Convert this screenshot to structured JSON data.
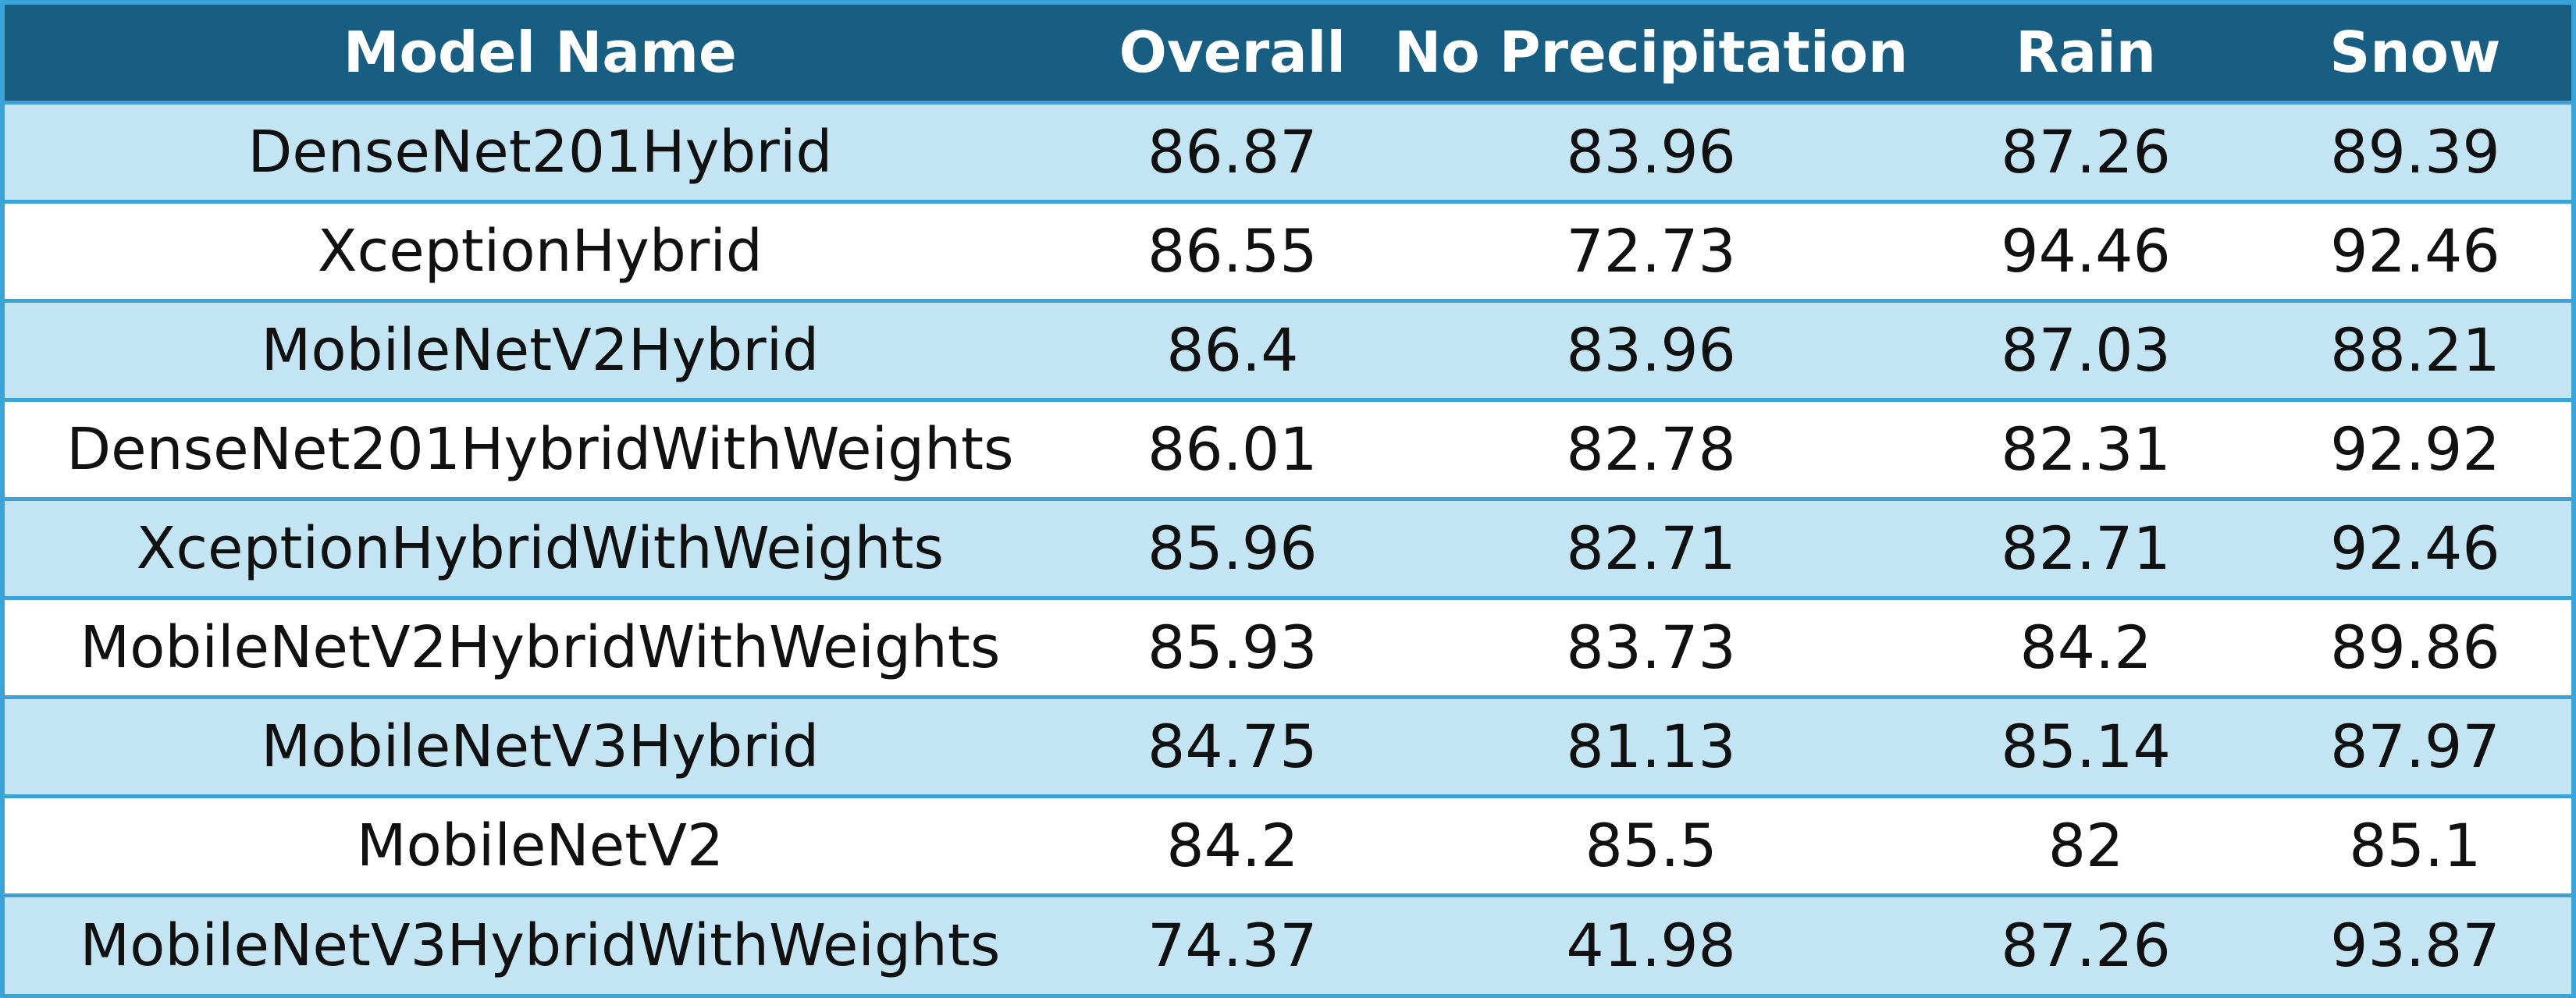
{
  "table": {
    "headers": [
      "Model Name",
      "Overall",
      "No Precipitation",
      "Rain",
      "Snow"
    ],
    "rows": [
      [
        "DenseNet201Hybrid",
        "86.87",
        "83.96",
        "87.26",
        "89.39"
      ],
      [
        "XceptionHybrid",
        "86.55",
        "72.73",
        "94.46",
        "92.46"
      ],
      [
        "MobileNetV2Hybrid",
        "86.4",
        "83.96",
        "87.03",
        "88.21"
      ],
      [
        "DenseNet201HybridWithWeights",
        "86.01",
        "82.78",
        "82.31",
        "92.92"
      ],
      [
        "XceptionHybridWithWeights",
        "85.96",
        "82.71",
        "82.71",
        "92.46"
      ],
      [
        "MobileNetV2HybridWithWeights",
        "85.93",
        "83.73",
        "84.2",
        "89.86"
      ],
      [
        "MobileNetV3Hybrid",
        "84.75",
        "81.13",
        "85.14",
        "87.97"
      ],
      [
        "MobileNetV2",
        "84.2",
        "85.5",
        "82",
        "85.1"
      ],
      [
        "MobileNetV3HybridWithWeights",
        "74.37",
        "41.98",
        "87.26",
        "93.87"
      ]
    ],
    "colors": {
      "header_bg": "#185d82",
      "header_text": "#ffffff",
      "row_alt_bg": "#c3e4f3",
      "row_bg": "#ffffff",
      "border": "#3aa3d8"
    }
  }
}
